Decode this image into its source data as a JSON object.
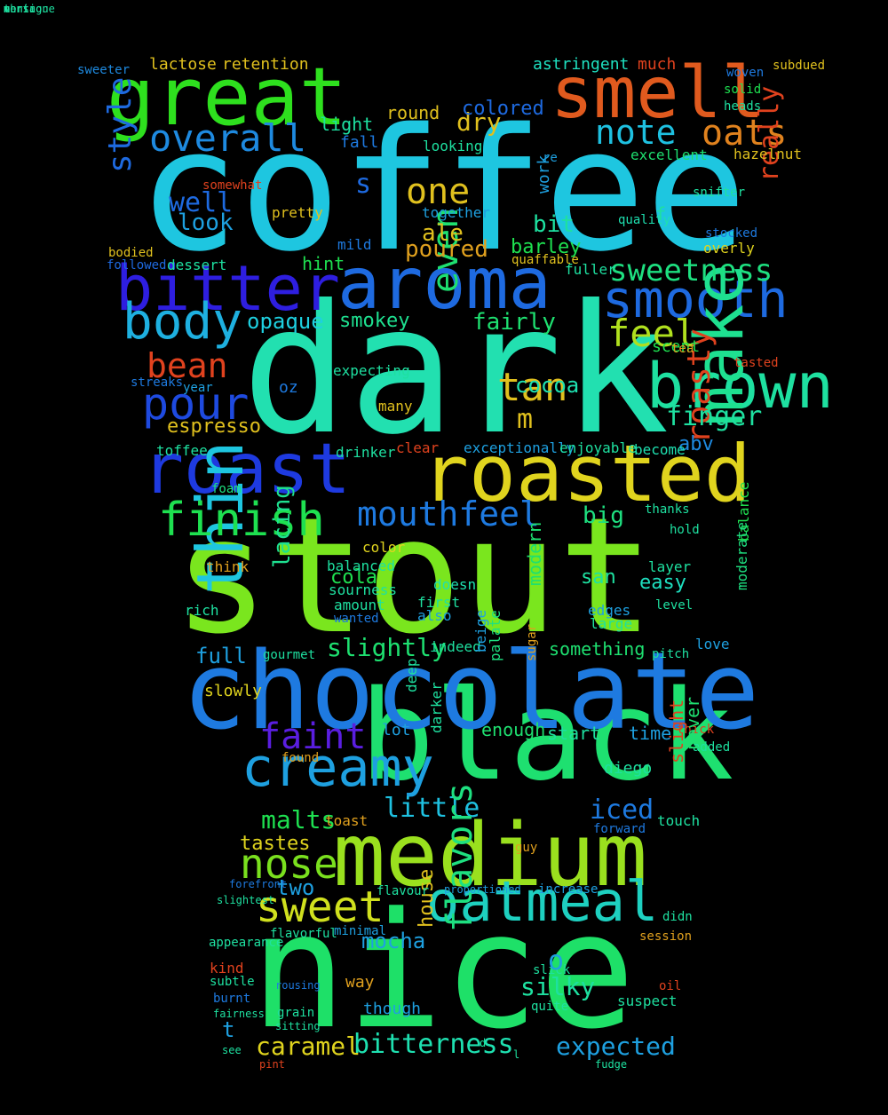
{
  "cloud": {
    "background": "#000000",
    "words": [
      {
        "text": "coffee",
        "color": "#1ec6e0"
      },
      {
        "text": "dark",
        "color": "#22e0b0"
      },
      {
        "text": "stout",
        "color": "#7ae61e"
      },
      {
        "text": "nice",
        "color": "#1ee068"
      },
      {
        "text": "black",
        "color": "#1ee070"
      },
      {
        "text": "chocolate",
        "color": "#1e7ae0"
      },
      {
        "text": "roasted",
        "color": "#e0d41e"
      },
      {
        "text": "medium",
        "color": "#9ae01e"
      },
      {
        "text": "oatmeal",
        "color": "#1ed0c0"
      },
      {
        "text": "great",
        "color": "#2ee01e"
      },
      {
        "text": "smell",
        "color": "#e05a1e"
      },
      {
        "text": "aroma",
        "color": "#1e6ae0"
      },
      {
        "text": "roast",
        "color": "#1e3ae0"
      },
      {
        "text": "bitter",
        "color": "#2e1ee0"
      },
      {
        "text": "smooth",
        "color": "#1e6ae0"
      },
      {
        "text": "brown",
        "color": "#1ee0a0"
      },
      {
        "text": "thin",
        "color": "#1ec6e0"
      },
      {
        "text": "creamy",
        "color": "#1ea0e0"
      },
      {
        "text": "body",
        "color": "#1eb0e0"
      },
      {
        "text": "pour",
        "color": "#1e4ae0"
      },
      {
        "text": "feel",
        "color": "#b0e01e"
      },
      {
        "text": "make",
        "color": "#1ee090"
      },
      {
        "text": "finish",
        "color": "#1ee050"
      },
      {
        "text": "mouthfeel",
        "color": "#1e7ae0"
      },
      {
        "text": "sweet",
        "color": "#d0e01e"
      },
      {
        "text": "nose",
        "color": "#7ae01e"
      },
      {
        "text": "faint",
        "color": "#5a1ee0"
      },
      {
        "text": "overall",
        "color": "#1e8ae0"
      },
      {
        "text": "style",
        "color": "#1e6ae0"
      },
      {
        "text": "note",
        "color": "#1ec0e0"
      },
      {
        "text": "oats",
        "color": "#e0821e"
      },
      {
        "text": "one",
        "color": "#e0c01e"
      },
      {
        "text": "tan",
        "color": "#e0c01e"
      },
      {
        "text": "bean",
        "color": "#e0421e"
      },
      {
        "text": "roasty",
        "color": "#e0421e"
      },
      {
        "text": "sweetness",
        "color": "#1ee080"
      },
      {
        "text": "even",
        "color": "#1ee070"
      },
      {
        "text": "really",
        "color": "#e0421e"
      },
      {
        "text": "finger",
        "color": "#1ee0a0"
      },
      {
        "text": "bitterness",
        "color": "#1ee0b0"
      },
      {
        "text": "caramel",
        "color": "#e0d41e"
      },
      {
        "text": "expected",
        "color": "#1ea0e0"
      },
      {
        "text": "little",
        "color": "#1ec0e0"
      },
      {
        "text": "malts",
        "color": "#1ee050"
      },
      {
        "text": "iced",
        "color": "#1e7ae0"
      },
      {
        "text": "silky",
        "color": "#1ee0a0"
      },
      {
        "text": "mocha",
        "color": "#1ea0e0"
      },
      {
        "text": "house",
        "color": "#e0c01e"
      },
      {
        "text": "flavors",
        "color": "#1ee080"
      },
      {
        "text": "slightly",
        "color": "#1ee070"
      },
      {
        "text": "lacing",
        "color": "#1ee090"
      },
      {
        "text": "full",
        "color": "#1ea0e0"
      },
      {
        "text": "opaque",
        "color": "#1ed0e0"
      },
      {
        "text": "smokey",
        "color": "#1ee090"
      },
      {
        "text": "fairly",
        "color": "#1ee070"
      },
      {
        "text": "well",
        "color": "#1e6ae0"
      },
      {
        "text": "look",
        "color": "#1ea0e0"
      },
      {
        "text": "light",
        "color": "#1ee0a0"
      },
      {
        "text": "dry",
        "color": "#e0c01e"
      },
      {
        "text": "colored",
        "color": "#1e6ae0"
      },
      {
        "text": "ale",
        "color": "#e0c01e"
      },
      {
        "text": "poured",
        "color": "#e0a01e"
      },
      {
        "text": "bit",
        "color": "#1ee0a0"
      },
      {
        "text": "barley",
        "color": "#1ee050"
      },
      {
        "text": "hint",
        "color": "#1ee050"
      },
      {
        "text": "abv",
        "color": "#1e8ae0"
      },
      {
        "text": "cocoa",
        "color": "#1ee0b0"
      },
      {
        "text": "espresso",
        "color": "#e0c01e"
      },
      {
        "text": "big",
        "color": "#1ee080"
      },
      {
        "text": "cola",
        "color": "#1ee050"
      },
      {
        "text": "san",
        "color": "#1ee0a0"
      },
      {
        "text": "easy",
        "color": "#1ee0c0"
      },
      {
        "text": "two",
        "color": "#1ea0e0"
      },
      {
        "text": "tastes",
        "color": "#e0d41e"
      },
      {
        "text": "sweeter",
        "color": "#1e8ae0"
      },
      {
        "text": "lactose",
        "color": "#e0c01e"
      },
      {
        "text": "retention",
        "color": "#e0c01e"
      },
      {
        "text": "astringent",
        "color": "#1ee0c0"
      },
      {
        "text": "much",
        "color": "#e0421e"
      },
      {
        "text": "subdued",
        "color": "#e0c01e"
      },
      {
        "text": "solid",
        "color": "#1ee050"
      },
      {
        "text": "woven",
        "color": "#1e7ae0"
      },
      {
        "text": "heads",
        "color": "#1ee0a0"
      },
      {
        "text": "round",
        "color": "#e0c01e"
      },
      {
        "text": "fall",
        "color": "#1e7ae0"
      },
      {
        "text": "looking",
        "color": "#1ee0a0"
      },
      {
        "text": "excellent",
        "color": "#1ee070"
      },
      {
        "text": "hazelnut",
        "color": "#e0c01e"
      },
      {
        "text": "pretty",
        "color": "#e0c01e"
      },
      {
        "text": "together",
        "color": "#1ea0e0"
      },
      {
        "text": "quality",
        "color": "#1ee0b0"
      },
      {
        "text": "snifter",
        "color": "#1ee0a0"
      },
      {
        "text": "stocked",
        "color": "#1e7ae0"
      },
      {
        "text": "overly",
        "color": "#e0d41e"
      },
      {
        "text": "bodied",
        "color": "#e0c01e"
      },
      {
        "text": "followed",
        "color": "#1e6ae0"
      },
      {
        "text": "dessert",
        "color": "#1ee0a0"
      },
      {
        "text": "mild",
        "color": "#1e7ae0"
      },
      {
        "text": "fuller",
        "color": "#1ee0a0"
      },
      {
        "text": "quaffable",
        "color": "#e0c01e"
      },
      {
        "text": "scent",
        "color": "#1ee050"
      },
      {
        "text": "tasted",
        "color": "#e0421e"
      },
      {
        "text": "oz",
        "color": "#1e7ae0"
      },
      {
        "text": "streaks",
        "color": "#1e7ae0"
      },
      {
        "text": "year",
        "color": "#1ea0e0"
      },
      {
        "text": "expecting",
        "color": "#1ee0a0"
      },
      {
        "text": "many",
        "color": "#e0c01e"
      },
      {
        "text": "toffee",
        "color": "#1ee0a0"
      },
      {
        "text": "drinker",
        "color": "#1ee0a0"
      },
      {
        "text": "exceptionally",
        "color": "#1ea0e0"
      },
      {
        "text": "enjoyable",
        "color": "#1ee0a0"
      },
      {
        "text": "become",
        "color": "#1ee0b0"
      },
      {
        "text": "clear",
        "color": "#e0421e"
      },
      {
        "text": "foam",
        "color": "#1ee080"
      },
      {
        "text": "thanks",
        "color": "#1ee0a0"
      },
      {
        "text": "balance",
        "color": "#1ee050"
      },
      {
        "text": "layer",
        "color": "#1ee0a0"
      },
      {
        "text": "level",
        "color": "#1ee0a0"
      },
      {
        "text": "moderate",
        "color": "#1ee080"
      },
      {
        "text": "color",
        "color": "#e0d41e"
      },
      {
        "text": "balanced",
        "color": "#1ee0a0"
      },
      {
        "text": "sourness",
        "color": "#1ee0a0"
      },
      {
        "text": "amount",
        "color": "#1ee0a0"
      },
      {
        "text": "wanted",
        "color": "#1e7ae0"
      },
      {
        "text": "rich",
        "color": "#1ee0a0"
      },
      {
        "text": "think",
        "color": "#e0a01e"
      },
      {
        "text": "doesn",
        "color": "#1ee0b0"
      },
      {
        "text": "first",
        "color": "#1ee0a0"
      },
      {
        "text": "also",
        "color": "#1ea0e0"
      },
      {
        "text": "edges",
        "color": "#1ea0e0"
      },
      {
        "text": "large",
        "color": "#1ee0a0"
      },
      {
        "text": "modern",
        "color": "#1ee070"
      },
      {
        "text": "something",
        "color": "#1ee070"
      },
      {
        "text": "pitch",
        "color": "#1ee0a0"
      },
      {
        "text": "love",
        "color": "#1ea0e0"
      },
      {
        "text": "gourmet",
        "color": "#1ee0a0"
      },
      {
        "text": "indeed",
        "color": "#1ee0a0"
      },
      {
        "text": "beige",
        "color": "#1ea0e0"
      },
      {
        "text": "palate",
        "color": "#1ee080"
      },
      {
        "text": "sugar",
        "color": "#e0a01e"
      },
      {
        "text": "slowly",
        "color": "#e0d41e"
      },
      {
        "text": "deep",
        "color": "#1ee0a0"
      },
      {
        "text": "enough",
        "color": "#1ee070"
      },
      {
        "text": "lot",
        "color": "#1ea0e0"
      },
      {
        "text": "start",
        "color": "#1ee0a0"
      },
      {
        "text": "time",
        "color": "#1ea0e0"
      },
      {
        "text": "thick",
        "color": "#e0421e"
      },
      {
        "text": "added",
        "color": "#1ee0a0"
      },
      {
        "text": "darker",
        "color": "#1ee0a0"
      },
      {
        "text": "found",
        "color": "#e0a01e"
      },
      {
        "text": "diego",
        "color": "#1ee0a0"
      },
      {
        "text": "never",
        "color": "#1ee070"
      },
      {
        "text": "slight",
        "color": "#e0421e"
      },
      {
        "text": "touch",
        "color": "#1ee0a0"
      },
      {
        "text": "toast",
        "color": "#e0a01e"
      },
      {
        "text": "flavour",
        "color": "#1ee0a0"
      },
      {
        "text": "proportioned",
        "color": "#1ea0e0"
      },
      {
        "text": "increase",
        "color": "#1ea0e0"
      },
      {
        "text": "didn",
        "color": "#1ee0a0"
      },
      {
        "text": "minimal",
        "color": "#1ea0e0"
      },
      {
        "text": "flavorful",
        "color": "#1ee0a0"
      },
      {
        "text": "session",
        "color": "#e0a01e"
      },
      {
        "text": "kind",
        "color": "#e0421e"
      },
      {
        "text": "subtle",
        "color": "#1ee0a0"
      },
      {
        "text": "way",
        "color": "#e0a01e"
      },
      {
        "text": "slick",
        "color": "#1ee0a0"
      },
      {
        "text": "oil",
        "color": "#e0421e"
      },
      {
        "text": "suspect",
        "color": "#1ee0a0"
      },
      {
        "text": "quite",
        "color": "#1ee0a0"
      },
      {
        "text": "burnt",
        "color": "#1e7ae0"
      },
      {
        "text": "grain",
        "color": "#1ee0a0"
      },
      {
        "text": "sitting",
        "color": "#1ee0a0"
      },
      {
        "text": "though",
        "color": "#1ea0e0"
      },
      {
        "text": "rousing",
        "color": "#1e7ae0"
      },
      {
        "text": "t",
        "color": "#1ea0e0"
      },
      {
        "text": "s",
        "color": "#1e6ae0"
      },
      {
        "text": "m",
        "color": "#e0c01e"
      },
      {
        "text": "o",
        "color": "#1ea0e0"
      },
      {
        "text": "f",
        "color": "#1ee0a0"
      },
      {
        "text": "tea",
        "color": "#e0a01e"
      },
      {
        "text": "re",
        "color": "#1ea0e0"
      },
      {
        "text": "work",
        "color": "#1ea0e0"
      },
      {
        "text": "somewhat",
        "color": "#e0421e"
      },
      {
        "text": "forward",
        "color": "#1e7ae0"
      },
      {
        "text": "see",
        "color": "#1ee0a0"
      },
      {
        "text": "pint",
        "color": "#e0421e"
      },
      {
        "text": "d",
        "color": "#1ee0a0"
      },
      {
        "text": "l",
        "color": "#1ee0a0"
      },
      {
        "text": "fudge",
        "color": "#1ee0a0"
      },
      {
        "text": "fairness",
        "color": "#1ee0a0"
      },
      {
        "text": "appearance",
        "color": "#1ee0a0"
      },
      {
        "text": "forefront",
        "color": "#1e7ae0"
      },
      {
        "text": "slightest",
        "color": "#1ee0a0"
      },
      {
        "text": "hold",
        "color": "#1ee0a0"
      },
      {
        "text": "guy",
        "color": "#e0a01e"
      },
      {
        "text": "version",
        "color": "#1ee0a0"
      },
      {
        "text": "montague",
        "color": "#1ee0a0"
      },
      {
        "text": "nonic",
        "color": "#1ee0a0"
      },
      {
        "text": "th",
        "color": "#1ee0a0"
      }
    ]
  }
}
